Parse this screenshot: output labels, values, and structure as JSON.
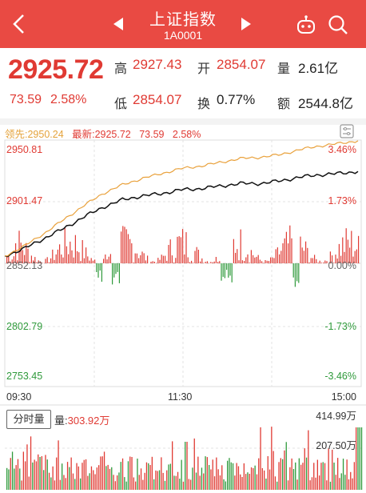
{
  "header": {
    "title": "上证指数",
    "code": "1A0001"
  },
  "quote": {
    "price": "2925.72",
    "change": "73.59",
    "change_pct": "2.58%",
    "high_label": "高",
    "high": "2927.43",
    "open_label": "开",
    "open": "2854.07",
    "volume_label": "量",
    "volume": "2.61亿",
    "low_label": "低",
    "low": "2854.07",
    "turnover_label": "换",
    "turnover": "0.77%",
    "amount_label": "额",
    "amount": "2544.8亿"
  },
  "chart": {
    "lead_label": "领先:",
    "lead_value": "2950.24",
    "latest_label": "最新:",
    "latest_value": "2925.72",
    "latest_change": "73.59",
    "latest_pct": "2.58%",
    "y_left": [
      "2950.81",
      "2901.47",
      "2852.13",
      "2802.79",
      "2753.45"
    ],
    "y_right": [
      "3.46%",
      "1.73%",
      "0.00%",
      "-1.73%",
      "-3.46%"
    ],
    "x_labels": [
      "09:30",
      "11:30",
      "15:00"
    ],
    "colors": {
      "up": "#e03a33",
      "down": "#2f9a3b",
      "lead": "#e9a13b",
      "price": "#111111"
    }
  },
  "chart_data": {
    "type": "line",
    "series": [
      {
        "name": "最新",
        "values": [
          2858,
          2864,
          2872,
          2880,
          2889,
          2897,
          2903,
          2906,
          2908,
          2911,
          2912,
          2914,
          2916,
          2916,
          2918,
          2921,
          2923,
          2924,
          2925.72
        ]
      },
      {
        "name": "领先",
        "values": [
          2858,
          2866,
          2876,
          2887,
          2898,
          2908,
          2915,
          2920,
          2924,
          2928,
          2930,
          2933,
          2936,
          2937,
          2939,
          2943,
          2946,
          2948,
          2950.24
        ]
      }
    ],
    "x": [
      "09:30",
      "",
      "",
      "",
      "",
      "",
      "",
      "",
      "",
      "11:30",
      "",
      "",
      "",
      "",
      "",
      "",
      "",
      "",
      "15:00"
    ],
    "ylim": [
      2753.45,
      2950.81
    ]
  },
  "volume": {
    "button": "分时量",
    "label": "量:",
    "value": "303.92万",
    "max": "414.99万",
    "mid": "207.50万"
  }
}
